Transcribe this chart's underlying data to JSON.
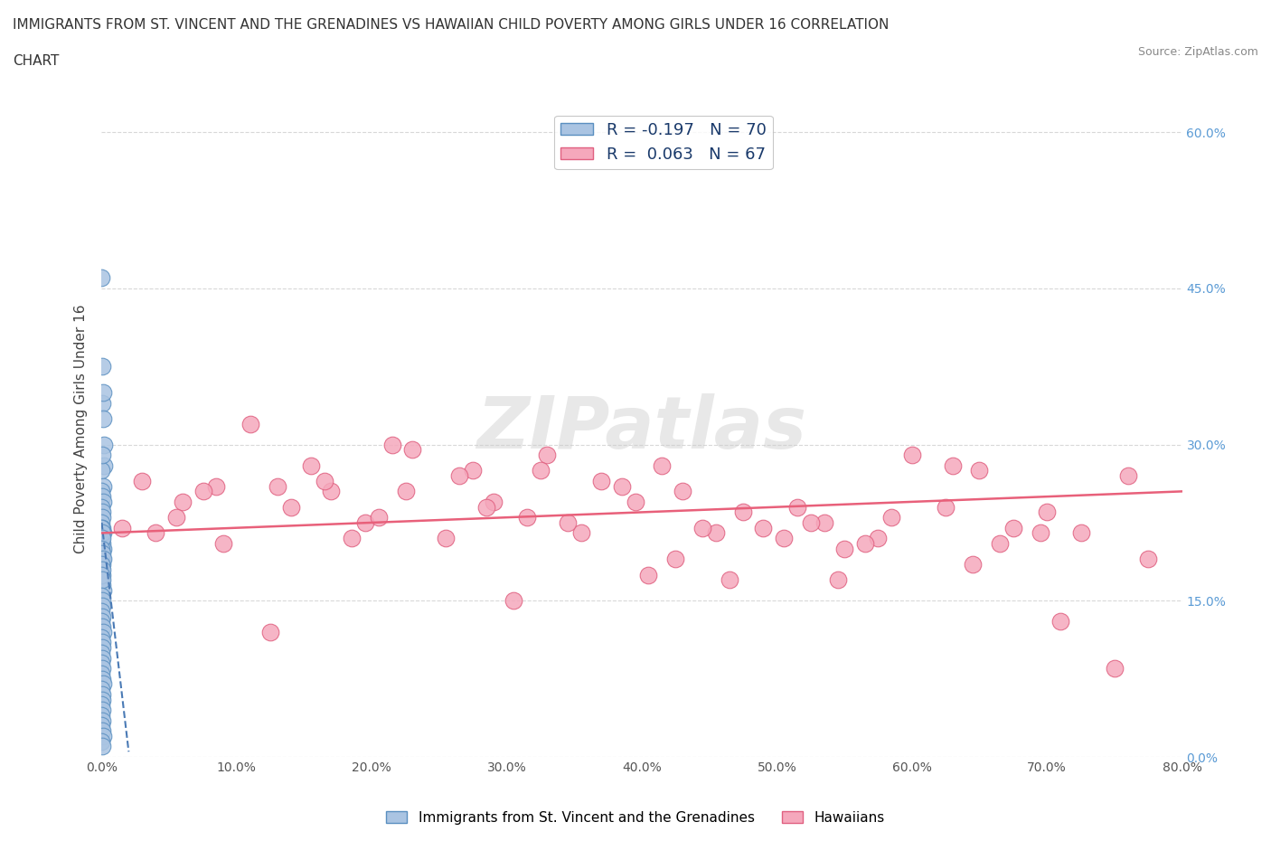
{
  "title_line1": "IMMIGRANTS FROM ST. VINCENT AND THE GRENADINES VS HAWAIIAN CHILD POVERTY AMONG GIRLS UNDER 16 CORRELATION",
  "title_line2": "CHART",
  "source": "Source: ZipAtlas.com",
  "ylabel": "Child Poverty Among Girls Under 16",
  "xlim": [
    0.0,
    80.0
  ],
  "ylim": [
    0.0,
    63.0
  ],
  "yticks": [
    0.0,
    15.0,
    30.0,
    45.0,
    60.0
  ],
  "xticks": [
    0.0,
    10.0,
    20.0,
    30.0,
    40.0,
    50.0,
    60.0,
    70.0,
    80.0
  ],
  "blue_R": -0.197,
  "blue_N": 70,
  "pink_R": 0.063,
  "pink_N": 67,
  "blue_color": "#aac4e2",
  "pink_color": "#f5a8bc",
  "blue_edge_color": "#5a8fc0",
  "pink_edge_color": "#e06080",
  "blue_line_color": "#4a7ab5",
  "pink_line_color": "#e8607a",
  "legend_label_blue": "Immigrants from St. Vincent and the Grenadines",
  "legend_label_pink": "Hawaiians",
  "watermark_text": "ZIPatlas",
  "blue_scatter_x": [
    0.0,
    0.02,
    0.05,
    0.08,
    0.12,
    0.15,
    0.18,
    0.0,
    0.03,
    0.07,
    0.0,
    0.04,
    0.1,
    0.0,
    0.02,
    0.06,
    0.0,
    0.03,
    0.08,
    0.0,
    0.05,
    0.1,
    0.0,
    0.02,
    0.04,
    0.0,
    0.06,
    0.0,
    0.03,
    0.08,
    0.0,
    0.02,
    0.05,
    0.0,
    0.04,
    0.07,
    0.0,
    0.03,
    0.0,
    0.05,
    0.0,
    0.02,
    0.06,
    0.0,
    0.04,
    0.0,
    0.03,
    0.07,
    0.0,
    0.02,
    0.05,
    0.0,
    0.04,
    0.0,
    0.06,
    0.0,
    0.03,
    0.08,
    0.0,
    0.02,
    0.05,
    0.0,
    0.04,
    0.0,
    0.06,
    0.0,
    0.03,
    0.07,
    0.0,
    0.05
  ],
  "blue_scatter_y": [
    46.0,
    37.5,
    34.0,
    32.5,
    35.0,
    30.0,
    28.0,
    27.5,
    29.0,
    26.0,
    25.5,
    25.0,
    24.5,
    24.0,
    23.5,
    23.0,
    22.5,
    22.0,
    21.5,
    21.0,
    20.5,
    20.0,
    19.5,
    19.0,
    18.5,
    18.0,
    17.5,
    17.0,
    16.5,
    16.0,
    22.0,
    21.5,
    21.0,
    20.0,
    19.5,
    19.0,
    18.5,
    18.0,
    17.5,
    17.0,
    15.5,
    15.0,
    14.5,
    14.0,
    13.5,
    13.0,
    12.5,
    12.0,
    11.5,
    11.0,
    10.5,
    10.0,
    9.5,
    9.0,
    8.5,
    8.0,
    7.5,
    7.0,
    6.5,
    6.0,
    5.5,
    5.0,
    4.5,
    4.0,
    3.5,
    3.0,
    2.5,
    2.0,
    1.5,
    1.0
  ],
  "pink_scatter_x": [
    1.5,
    4.0,
    6.0,
    8.5,
    11.0,
    13.0,
    15.5,
    17.0,
    19.5,
    21.5,
    23.0,
    25.5,
    27.5,
    29.0,
    31.5,
    33.0,
    35.5,
    37.0,
    39.5,
    41.5,
    43.0,
    45.5,
    47.5,
    49.0,
    51.5,
    53.5,
    55.0,
    57.5,
    60.0,
    62.5,
    65.0,
    67.5,
    70.0,
    72.5,
    75.0,
    77.5,
    3.0,
    9.0,
    14.0,
    20.5,
    26.5,
    32.5,
    38.5,
    44.5,
    50.5,
    56.5,
    63.0,
    69.5,
    76.0,
    5.5,
    16.5,
    22.5,
    28.5,
    34.5,
    40.5,
    46.5,
    52.5,
    58.5,
    64.5,
    71.0,
    7.5,
    18.5,
    30.5,
    42.5,
    54.5,
    66.5,
    12.5
  ],
  "pink_scatter_y": [
    22.0,
    21.5,
    24.5,
    26.0,
    32.0,
    26.0,
    28.0,
    25.5,
    22.5,
    30.0,
    29.5,
    21.0,
    27.5,
    24.5,
    23.0,
    29.0,
    21.5,
    26.5,
    24.5,
    28.0,
    25.5,
    21.5,
    23.5,
    22.0,
    24.0,
    22.5,
    20.0,
    21.0,
    29.0,
    24.0,
    27.5,
    22.0,
    23.5,
    21.5,
    8.5,
    19.0,
    26.5,
    20.5,
    24.0,
    23.0,
    27.0,
    27.5,
    26.0,
    22.0,
    21.0,
    20.5,
    28.0,
    21.5,
    27.0,
    23.0,
    26.5,
    25.5,
    24.0,
    22.5,
    17.5,
    17.0,
    22.5,
    23.0,
    18.5,
    13.0,
    25.5,
    21.0,
    15.0,
    19.0,
    17.0,
    20.5,
    12.0
  ],
  "blue_trend_x0": 0.0,
  "blue_trend_y0": 22.5,
  "blue_trend_x1": 2.0,
  "blue_trend_y1": 0.5,
  "pink_trend_x0": 0.0,
  "pink_trend_y0": 21.5,
  "pink_trend_x1": 80.0,
  "pink_trend_y1": 25.5
}
